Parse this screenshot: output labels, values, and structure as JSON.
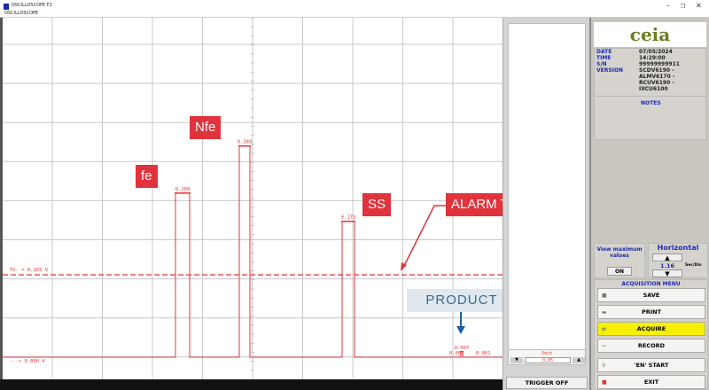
{
  "window": {
    "title": "OSCILLOSCOPE F2",
    "subtitle": "OSCILLOSCOPE",
    "minimize": "–",
    "restore": "❐",
    "close": "✕"
  },
  "plot": {
    "threshold_label": "Th. =    0.105 V",
    "zero_label": "--->     0.000 V",
    "threshold_value": 0.105,
    "peaks": [
      {
        "label": "0.209",
        "value": 0.209
      },
      {
        "label": "0.269",
        "value": 0.269
      },
      {
        "label": "0.173",
        "value": 0.173
      },
      {
        "label": "0.007",
        "value": 0.007
      }
    ],
    "extra_labels": [
      "0.001",
      "0.001"
    ],
    "trace_color": "#e8323a"
  },
  "callouts": {
    "fe": "fe",
    "nfe": "Nfe",
    "ss": "SS",
    "alarm": "ALARM THRESHOLD",
    "product": "PRODUCT"
  },
  "mid": {
    "vout_label": "Vout",
    "vout_value": "0.05",
    "down": "▼",
    "up": "▲",
    "trigger": "TRIGGER OFF"
  },
  "right": {
    "logo": "ceia",
    "info": [
      {
        "k": "DATE",
        "v": "07/05/2024"
      },
      {
        "k": "TIME",
        "v": "14:29:00"
      },
      {
        "k": "S/N",
        "v": "99999999911"
      },
      {
        "k": "VERSION",
        "v": "SCDV6190 -"
      },
      {
        "k": "",
        "v": "ALMV6170 -"
      },
      {
        "k": "",
        "v": "RCUV6190 -"
      },
      {
        "k": "",
        "v": "IXCU6100"
      }
    ],
    "notes": "NOTES",
    "view_max": "View maximum values",
    "on": "ON",
    "horizontal": "Horizontal",
    "h_up": "▲",
    "h_down": "▼",
    "h_value": "1.16",
    "h_unit": "Sec/Div",
    "acq_title": "ACQUISITION MENU",
    "buttons": [
      "SAVE",
      "PRINT",
      "ACQUIRE",
      "RECORD",
      "'EN' START",
      "EXIT"
    ],
    "acquire_color": "#f5f000"
  }
}
